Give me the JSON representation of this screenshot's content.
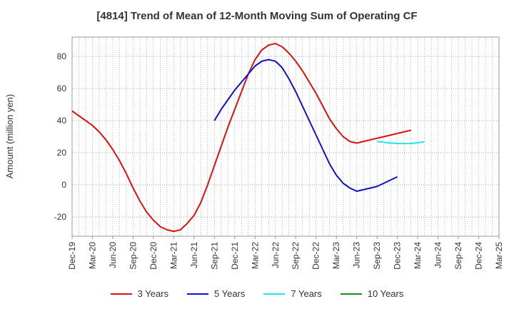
{
  "chart_data": {
    "type": "line",
    "title": "[4814]  Trend of Mean of 12-Month Moving Sum of Operating CF",
    "ylabel": "Amount (million yen)",
    "xlabel": "",
    "ylim": [
      -32,
      92
    ],
    "yticks": [
      -20,
      0,
      20,
      40,
      60,
      80
    ],
    "x_start": "2019-12",
    "x_end": "2025-03",
    "xtick_labels": [
      "Dec-19",
      "Mar-20",
      "Jun-20",
      "Sep-20",
      "Dec-20",
      "Mar-21",
      "Jun-21",
      "Sep-21",
      "Dec-21",
      "Mar-22",
      "Jun-22",
      "Sep-22",
      "Dec-22",
      "Mar-23",
      "Jun-23",
      "Sep-23",
      "Dec-23",
      "Mar-24",
      "Jun-24",
      "Sep-24",
      "Dec-24",
      "Mar-25"
    ],
    "grid": true,
    "legend_position": "bottom",
    "series": [
      {
        "name": "3 Years",
        "color": "#dd1111",
        "start_index": 0,
        "values": [
          46,
          43,
          40,
          37,
          33,
          28,
          22,
          15,
          7,
          -2,
          -10,
          -17,
          -22,
          -26,
          -28,
          -29,
          -28,
          -24,
          -19,
          -11,
          0,
          12,
          24,
          36,
          47,
          58,
          69,
          78,
          84,
          87,
          88,
          86,
          82,
          77,
          71,
          64,
          57,
          49,
          41,
          35,
          30,
          27,
          26,
          27,
          28,
          29,
          30,
          31,
          32,
          33,
          34
        ]
      },
      {
        "name": "5 Years",
        "color": "#1111cc",
        "start_index": 21,
        "values": [
          40,
          47,
          53,
          59,
          64,
          69,
          74,
          77,
          78,
          77,
          73,
          66,
          58,
          49,
          40,
          31,
          22,
          13,
          6,
          1,
          -2,
          -4,
          -3,
          -2,
          -1,
          1,
          3,
          5
        ]
      },
      {
        "name": "7 Years",
        "color": "#22e5e5",
        "start_index": 45,
        "values": [
          27,
          26.5,
          26,
          25.8,
          25.7,
          25.8,
          26.2,
          26.8
        ]
      },
      {
        "name": "10 Years",
        "color": "#228822",
        "start_index": 0,
        "values": []
      }
    ]
  }
}
